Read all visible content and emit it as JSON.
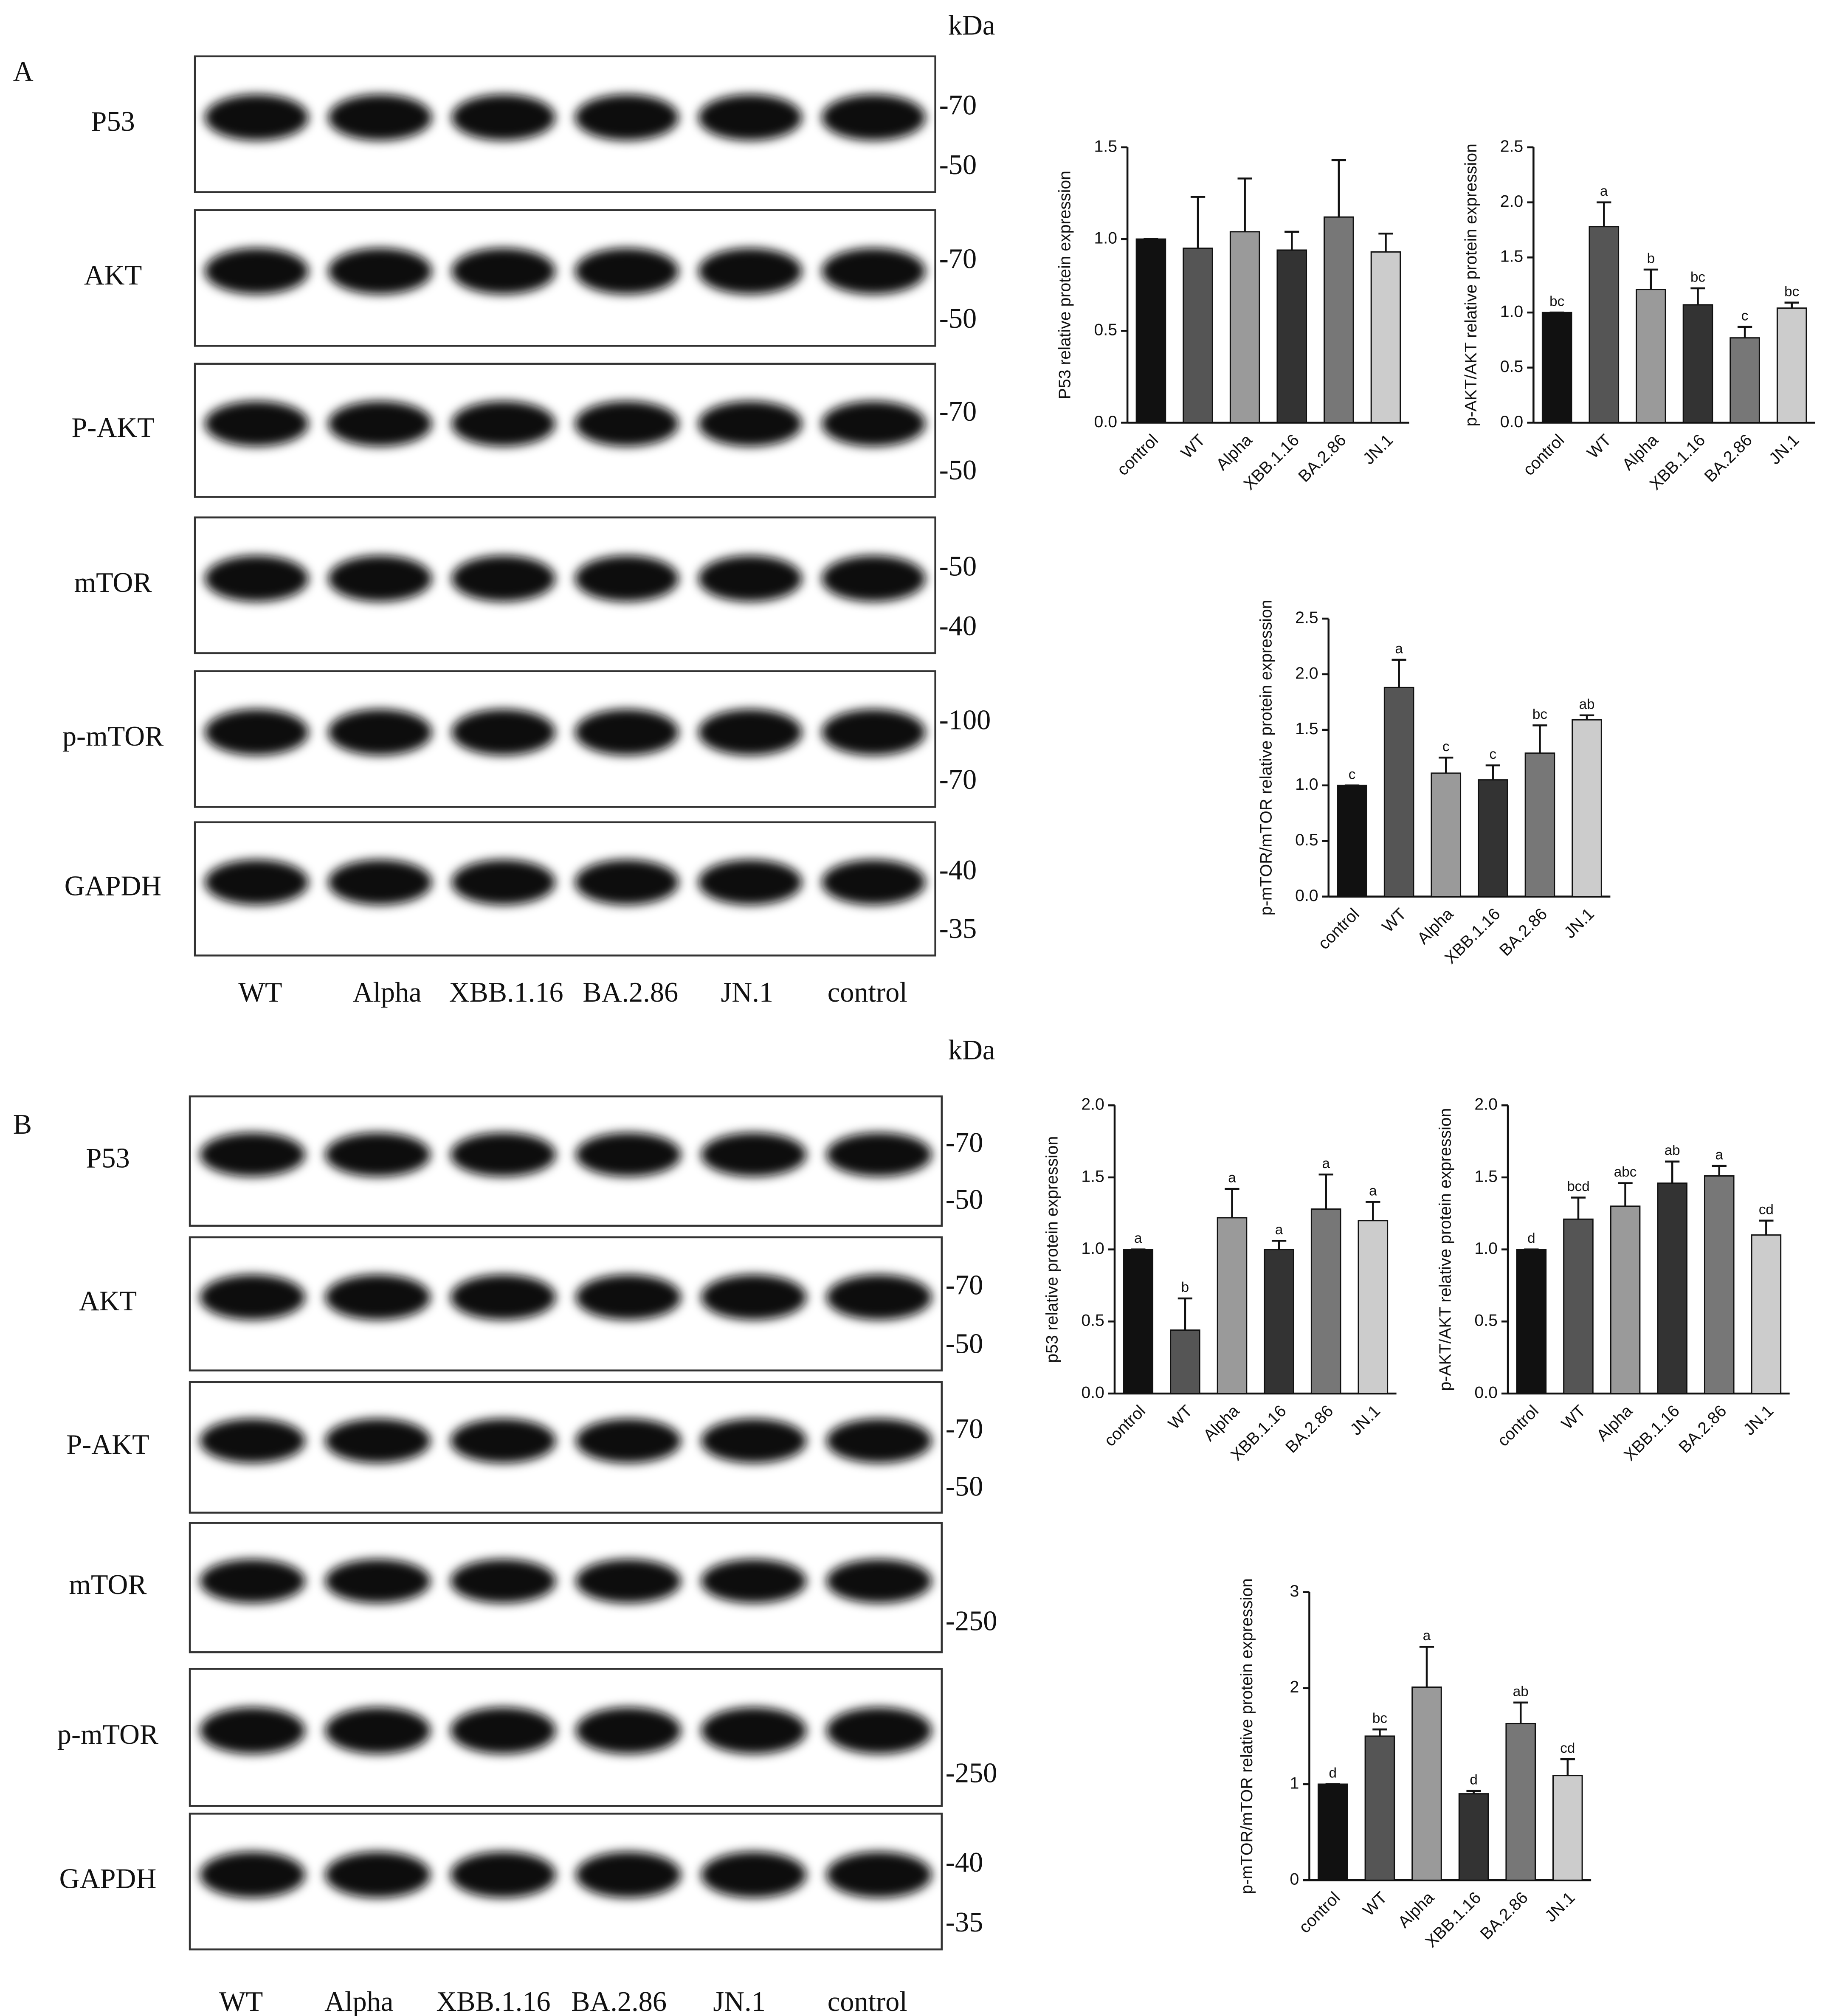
{
  "panels": [
    {
      "label": "A",
      "kda": "kDa",
      "blots": [
        {
          "name": "P53",
          "markers": [
            "-70",
            "-50"
          ]
        },
        {
          "name": "AKT",
          "markers": [
            "-70",
            "-50"
          ]
        },
        {
          "name": "P-AKT",
          "markers": [
            "-70",
            "-50"
          ]
        },
        {
          "name": "mTOR",
          "markers": [
            "-50",
            "-40"
          ]
        },
        {
          "name": "p-mTOR",
          "markers": [
            "-100",
            "-70"
          ]
        },
        {
          "name": "GAPDH",
          "markers": [
            "-40",
            "-35"
          ]
        }
      ],
      "lanes": [
        "WT",
        "Alpha",
        "XBB.1.16",
        "BA.2.86",
        "JN.1",
        "control"
      ]
    },
    {
      "label": "B",
      "kda": "kDa",
      "blots": [
        {
          "name": "P53",
          "markers": [
            "-70",
            "-50"
          ]
        },
        {
          "name": "AKT",
          "markers": [
            "-70",
            "-50"
          ]
        },
        {
          "name": "P-AKT",
          "markers": [
            "-70",
            "-50"
          ]
        },
        {
          "name": "mTOR",
          "markers": [
            "-250"
          ]
        },
        {
          "name": "p-mTOR",
          "markers": [
            "-250"
          ]
        },
        {
          "name": "GAPDH",
          "markers": [
            "-40",
            "-35"
          ]
        }
      ],
      "lanes": [
        "WT",
        "Alpha",
        "XBB.1.16",
        "BA.2.86",
        "JN.1",
        "control"
      ]
    }
  ],
  "chart_data": [
    {
      "type": "bar",
      "ylabel": "P53 relative protein expression",
      "categories": [
        "control",
        "WT",
        "Alpha",
        "XBB.1.16",
        "BA.2.86",
        "JN.1"
      ],
      "values": [
        1.0,
        0.95,
        1.04,
        0.94,
        1.12,
        0.93
      ],
      "errors": [
        0,
        0.28,
        0.29,
        0.1,
        0.31,
        0.1
      ],
      "colors": [
        "#111111",
        "#555555",
        "#9a9a9a",
        "#333333",
        "#777777",
        "#cccccc"
      ],
      "ylim": [
        0,
        1.5
      ],
      "yticks": [
        {
          "value": 0,
          "label": "0.0"
        },
        0.5,
        {
          "value": 1,
          "label": "1.0"
        },
        1.5
      ]
    },
    {
      "type": "bar",
      "ylabel": "p-AKT/AKT relative protein expression",
      "categories": [
        "control",
        "WT",
        "Alpha",
        "XBB.1.16",
        "BA.2.86",
        "JN.1"
      ],
      "values": [
        1.0,
        1.78,
        1.21,
        1.07,
        0.77,
        1.04
      ],
      "errors": [
        0,
        0.22,
        0.18,
        0.15,
        0.1,
        0.05
      ],
      "annotations": [
        "bc",
        "a",
        "b",
        "bc",
        "c",
        "bc"
      ],
      "colors": [
        "#111111",
        "#555555",
        "#9a9a9a",
        "#333333",
        "#777777",
        "#cccccc"
      ],
      "ylim": [
        0,
        2.5
      ],
      "yticks": [
        {
          "value": 0,
          "label": "0.0"
        },
        0.5,
        {
          "value": 1,
          "label": "1.0"
        },
        1.5,
        {
          "value": 2,
          "label": "2.0"
        },
        2.5
      ]
    },
    {
      "type": "bar",
      "ylabel": "p-mTOR/mTOR relative protein expression",
      "categories": [
        "control",
        "WT",
        "Alpha",
        "XBB.1.16",
        "BA.2.86",
        "JN.1"
      ],
      "values": [
        1.0,
        1.88,
        1.11,
        1.05,
        1.29,
        1.59
      ],
      "errors": [
        0,
        0.25,
        0.14,
        0.13,
        0.25,
        0.04
      ],
      "annotations": [
        "c",
        "a",
        "c",
        "c",
        "bc",
        "ab"
      ],
      "colors": [
        "#111111",
        "#555555",
        "#9a9a9a",
        "#333333",
        "#777777",
        "#cccccc"
      ],
      "ylim": [
        0,
        2.5
      ],
      "yticks": [
        {
          "value": 0,
          "label": "0.0"
        },
        0.5,
        {
          "value": 1,
          "label": "1.0"
        },
        1.5,
        {
          "value": 2,
          "label": "2.0"
        },
        2.5
      ]
    },
    {
      "type": "bar",
      "ylabel": "p53 relative protein expression",
      "categories": [
        "control",
        "WT",
        "Alpha",
        "XBB.1.16",
        "BA.2.86",
        "JN.1"
      ],
      "values": [
        1.0,
        0.44,
        1.22,
        1.0,
        1.28,
        1.2
      ],
      "errors": [
        0,
        0.22,
        0.2,
        0.06,
        0.24,
        0.13
      ],
      "annotations": [
        "a",
        "b",
        "a",
        "a",
        "a",
        "a"
      ],
      "colors": [
        "#111111",
        "#555555",
        "#9a9a9a",
        "#333333",
        "#777777",
        "#cccccc"
      ],
      "ylim": [
        0,
        2
      ],
      "yticks": [
        {
          "value": 0,
          "label": "0.0"
        },
        0.5,
        {
          "value": 1,
          "label": "1.0"
        },
        1.5,
        {
          "value": 2,
          "label": "2.0"
        }
      ]
    },
    {
      "type": "bar",
      "ylabel": "p-AKT/AKT relative protein expression",
      "categories": [
        "control",
        "WT",
        "Alpha",
        "XBB.1.16",
        "BA.2.86",
        "JN.1"
      ],
      "values": [
        1.0,
        1.21,
        1.3,
        1.46,
        1.51,
        1.1
      ],
      "errors": [
        0,
        0.15,
        0.16,
        0.15,
        0.07,
        0.1
      ],
      "annotations": [
        "d",
        "bcd",
        "abc",
        "ab",
        "a",
        "cd"
      ],
      "colors": [
        "#111111",
        "#555555",
        "#9a9a9a",
        "#333333",
        "#777777",
        "#cccccc"
      ],
      "ylim": [
        0,
        2
      ],
      "yticks": [
        {
          "value": 0,
          "label": "0.0"
        },
        0.5,
        {
          "value": 1,
          "label": "1.0"
        },
        1.5,
        {
          "value": 2,
          "label": "2.0"
        }
      ]
    },
    {
      "type": "bar",
      "ylabel": "p-mTOR/mTOR relative protein expression",
      "categories": [
        "control",
        "WT",
        "Alpha",
        "XBB.1.16",
        "BA.2.86",
        "JN.1"
      ],
      "values": [
        1.0,
        1.5,
        2.01,
        0.9,
        1.63,
        1.09
      ],
      "errors": [
        0,
        0.07,
        0.42,
        0.03,
        0.22,
        0.17
      ],
      "annotations": [
        "d",
        "bc",
        "a",
        "d",
        "ab",
        "cd"
      ],
      "colors": [
        "#111111",
        "#555555",
        "#9a9a9a",
        "#333333",
        "#777777",
        "#cccccc"
      ],
      "ylim": [
        0,
        3
      ],
      "yticks": [
        0,
        1,
        2,
        3
      ]
    }
  ]
}
